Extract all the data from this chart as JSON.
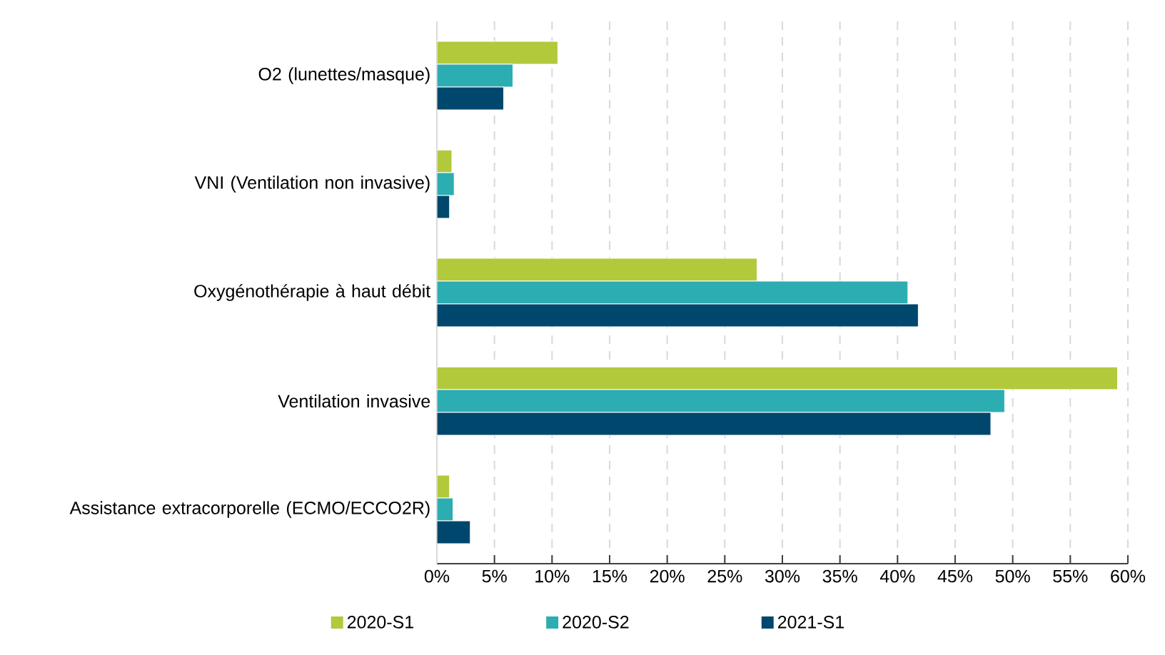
{
  "chart_data": {
    "type": "bar",
    "orientation": "horizontal",
    "categories": [
      "O2 (lunettes/masque)",
      "VNI (Ventilation non invasive)",
      "Oxygénothérapie à haut débit",
      "Ventilation invasive",
      "Assistance extracorporelle (ECMO/ECCO2R)"
    ],
    "series": [
      {
        "name": "2020-S1",
        "color": "#b2c93b",
        "values": [
          10.5,
          1.3,
          27.8,
          59.1,
          1.1
        ]
      },
      {
        "name": "2020-S2",
        "color": "#2badb2",
        "values": [
          6.6,
          1.5,
          40.9,
          49.3,
          1.4
        ]
      },
      {
        "name": "2021-S1",
        "color": "#00476d",
        "values": [
          5.8,
          1.1,
          41.8,
          48.1,
          2.9
        ]
      }
    ],
    "xlim": [
      0,
      60
    ],
    "xticks": [
      {
        "value": 0,
        "label": "0%"
      },
      {
        "value": 5,
        "label": "5%"
      },
      {
        "value": 10,
        "label": "10%"
      },
      {
        "value": 15,
        "label": "15%"
      },
      {
        "value": 20,
        "label": "20%"
      },
      {
        "value": 25,
        "label": "25%"
      },
      {
        "value": 30,
        "label": "30%"
      },
      {
        "value": 35,
        "label": "35%"
      },
      {
        "value": 40,
        "label": "40%"
      },
      {
        "value": 45,
        "label": "45%"
      },
      {
        "value": 50,
        "label": "50%"
      },
      {
        "value": 55,
        "label": "55%"
      },
      {
        "value": 60,
        "label": "60%"
      }
    ],
    "grid": "x",
    "legend": "bottom"
  }
}
